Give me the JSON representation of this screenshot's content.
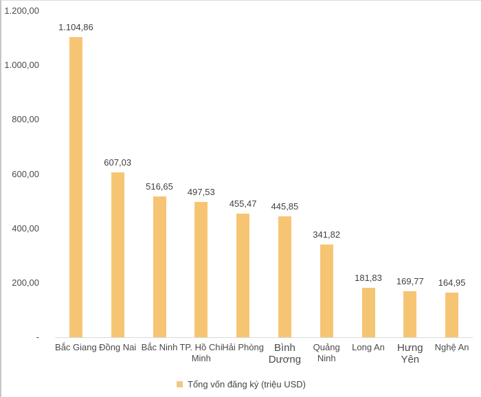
{
  "chart_data": {
    "type": "bar",
    "title": "",
    "legend": "Tổng vốn đăng ký (triệu USD)",
    "legend_position": "bottom",
    "bar_color": "#F6C574",
    "legend_marker_color": "#F0C886",
    "axis_color": "#D9D9D9",
    "text_color": "#424242",
    "ylim": [
      0,
      1200
    ],
    "grid": false,
    "xlabel": "",
    "ylabel": "",
    "yticks": [
      {
        "value": 1200,
        "label": "1.200,00"
      },
      {
        "value": 1000,
        "label": "1.000,00"
      },
      {
        "value": 800,
        "label": "800,00"
      },
      {
        "value": 600,
        "label": "600,00"
      },
      {
        "value": 400,
        "label": "400,00"
      },
      {
        "value": 200,
        "label": "200,00"
      },
      {
        "value": 0,
        "label": "-"
      }
    ],
    "categories": [
      {
        "name": "Bắc Giang",
        "label_lines": [
          "Bắc Giang"
        ],
        "value": 1104.86,
        "value_label": "1.104,86",
        "emphasis": false
      },
      {
        "name": "Đồng Nai",
        "label_lines": [
          "Đồng Nai"
        ],
        "value": 607.03,
        "value_label": "607,03",
        "emphasis": false
      },
      {
        "name": "Bắc Ninh",
        "label_lines": [
          "Bắc Ninh"
        ],
        "value": 516.65,
        "value_label": "516,65",
        "emphasis": false
      },
      {
        "name": "TP. Hồ Chí Minh",
        "label_lines": [
          "TP. Hồ Chí",
          "Minh"
        ],
        "value": 497.53,
        "value_label": "497,53",
        "emphasis": false
      },
      {
        "name": "Hải Phòng",
        "label_lines": [
          "Hải Phòng"
        ],
        "value": 455.47,
        "value_label": "455,47",
        "emphasis": false
      },
      {
        "name": "Bình Dương",
        "label_lines": [
          "Bình",
          "Dương"
        ],
        "value": 445.85,
        "value_label": "445,85",
        "emphasis": true
      },
      {
        "name": "Quảng Ninh",
        "label_lines": [
          "Quảng",
          "Ninh"
        ],
        "value": 341.82,
        "value_label": "341,82",
        "emphasis": false
      },
      {
        "name": "Long An",
        "label_lines": [
          "Long An"
        ],
        "value": 181.83,
        "value_label": "181,83",
        "emphasis": false
      },
      {
        "name": "Hưng Yên",
        "label_lines": [
          "Hưng",
          "Yên"
        ],
        "value": 169.77,
        "value_label": "169,77",
        "emphasis": true
      },
      {
        "name": "Nghệ An",
        "label_lines": [
          "Nghệ An"
        ],
        "value": 164.95,
        "value_label": "164,95",
        "emphasis": false
      }
    ]
  }
}
